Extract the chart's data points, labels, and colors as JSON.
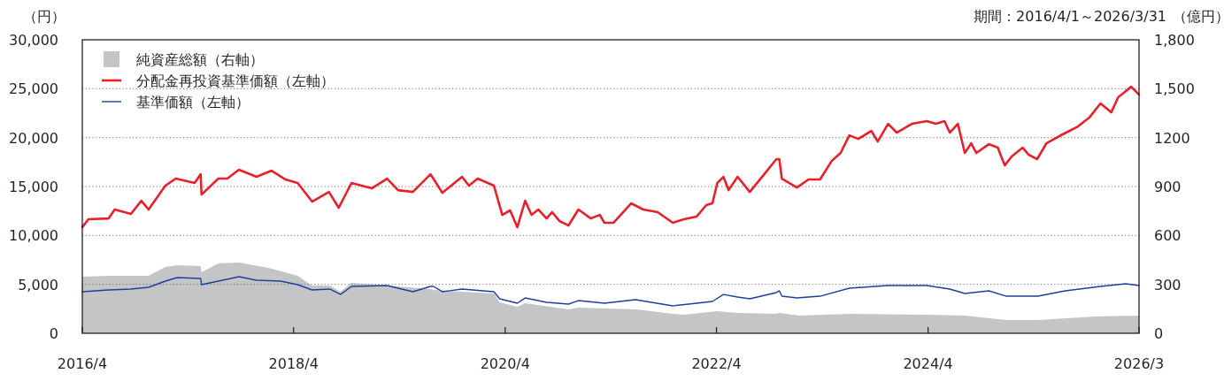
{
  "chart_data": {
    "type": "line",
    "subtitle": "期間：2016/4/1～2026/3/31",
    "ylabel": "（円）",
    "y2label": "（億円）",
    "xlim": [
      "2016-04-01",
      "2026-03-31"
    ],
    "xticks": [
      {
        "value": "2016-04-01",
        "label": "2016/4"
      },
      {
        "value": "2018-04-01",
        "label": "2018/4"
      },
      {
        "value": "2020-04-01",
        "label": "2020/4"
      },
      {
        "value": "2022-04-01",
        "label": "2022/4"
      },
      {
        "value": "2024-04-01",
        "label": "2024/4"
      },
      {
        "value": "2026-03-31",
        "label": "2026/3"
      }
    ],
    "ylim": [
      0,
      30000
    ],
    "yticks": [
      0,
      {
        "value": 5000,
        "label": "5,000"
      },
      {
        "value": 10000,
        "label": "10,000"
      },
      {
        "value": 15000,
        "label": "15,000"
      },
      {
        "value": 20000,
        "label": "20,000"
      },
      {
        "value": 25000,
        "label": "25,000"
      },
      {
        "value": 30000,
        "label": "30,000"
      }
    ],
    "y2lim": [
      0,
      1800
    ],
    "y2ticks": [
      0,
      300,
      600,
      900,
      1200,
      {
        "value": 1500,
        "label": "1,500"
      },
      {
        "value": 1800,
        "label": "1,800"
      }
    ],
    "grid": "y",
    "legend": "top left",
    "series": [
      {
        "name": "純資産総額（右軸）",
        "type": "area",
        "axis": "y2",
        "color": "#c4c5c7",
        "x": [
          "2016-04-01",
          "2016-07-01",
          "2016-11-16",
          "2017-01-13",
          "2017-02-23",
          "2017-05-15",
          "2017-05-18",
          "2017-07-15",
          "2017-09-24",
          "2018-01-04",
          "2018-04-15",
          "2018-06-04",
          "2018-08-04",
          "2018-09-10",
          "2018-10-18",
          "2019-02-18",
          "2019-07-18",
          "2019-07-28",
          "2019-11-04",
          "2020-02-22",
          "2020-03-13",
          "2020-05-13",
          "2020-06-09",
          "2020-11-06",
          "2020-12-10",
          "2021-07-01",
          "2021-11-01",
          "2021-12-10",
          "2022-04-04",
          "2022-06-13",
          "2022-10-25",
          "2022-11-04",
          "2023-01-13",
          "2023-07-04",
          "2024-03-28",
          "2024-08-06",
          "2024-12-28",
          "2025-04-16",
          "2025-11-01",
          "2026-03-31"
        ],
        "values": [
          347,
          353,
          353,
          407,
          418,
          412,
          374,
          428,
          434,
          401,
          353,
          293,
          293,
          255,
          309,
          293,
          271,
          266,
          255,
          244,
          190,
          163,
          184,
          146,
          157,
          146,
          119,
          114,
          136,
          125,
          119,
          125,
          108,
          119,
          114,
          108,
          81,
          81,
          103,
          108
        ]
      },
      {
        "name": "分配金再投資基準価額（左軸）",
        "axis": "y",
        "color": "#e8202a",
        "x": [
          "2016-04-01",
          "2016-04-22",
          "2016-07-01",
          "2016-07-22",
          "2016-09-16",
          "2016-10-22",
          "2016-11-16",
          "2017-01-13",
          "2017-02-18",
          "2017-04-24",
          "2017-05-15",
          "2017-05-18",
          "2017-07-15",
          "2017-08-15",
          "2017-09-24",
          "2017-11-24",
          "2018-01-15",
          "2018-03-04",
          "2018-04-15",
          "2018-06-04",
          "2018-08-01",
          "2018-09-04",
          "2018-10-18",
          "2018-12-27",
          "2019-02-18",
          "2019-03-28",
          "2019-05-18",
          "2019-07-18",
          "2019-08-28",
          "2019-11-04",
          "2019-11-28",
          "2019-12-28",
          "2020-02-22",
          "2020-03-22",
          "2020-04-18",
          "2020-05-13",
          "2020-06-09",
          "2020-07-01",
          "2020-07-25",
          "2020-08-22",
          "2020-09-10",
          "2020-10-06",
          "2020-11-06",
          "2020-12-10",
          "2021-01-22",
          "2021-02-22",
          "2021-03-10",
          "2021-04-10",
          "2021-06-10",
          "2021-07-22",
          "2021-09-10",
          "2021-11-01",
          "2021-12-10",
          "2022-01-22",
          "2022-02-25",
          "2022-03-18",
          "2022-04-04",
          "2022-04-25",
          "2022-05-13",
          "2022-06-13",
          "2022-07-25",
          "2022-09-13",
          "2022-10-25",
          "2022-11-04",
          "2022-11-13",
          "2023-01-04",
          "2023-02-13",
          "2023-03-25",
          "2023-05-04",
          "2023-06-04",
          "2023-07-04",
          "2023-08-04",
          "2023-09-18",
          "2023-10-10",
          "2023-11-15",
          "2023-12-15",
          "2024-02-05",
          "2024-03-28",
          "2024-04-28",
          "2024-05-28",
          "2024-06-15",
          "2024-07-13",
          "2024-08-06",
          "2024-08-28",
          "2024-09-15",
          "2024-10-28",
          "2024-11-28",
          "2024-12-22",
          "2025-01-15",
          "2025-02-22",
          "2025-03-15",
          "2025-04-13",
          "2025-05-15",
          "2025-07-10",
          "2025-09-01",
          "2025-10-10",
          "2025-11-18",
          "2025-12-25",
          "2026-01-18",
          "2026-03-04",
          "2026-03-31"
        ],
        "values": [
          10840,
          11650,
          11740,
          12650,
          12200,
          13550,
          12650,
          15090,
          15810,
          15360,
          16260,
          14180,
          15810,
          15810,
          16710,
          15990,
          16620,
          15720,
          15360,
          13460,
          14450,
          12830,
          15360,
          14810,
          15810,
          14630,
          14450,
          16260,
          14360,
          15990,
          15090,
          15810,
          15090,
          12100,
          12560,
          10840,
          13550,
          12100,
          12650,
          11740,
          12380,
          11470,
          11020,
          12650,
          11740,
          12100,
          11290,
          11290,
          13280,
          12650,
          12380,
          11290,
          11650,
          11920,
          13100,
          13280,
          15360,
          15990,
          14630,
          15990,
          14450,
          16260,
          17800,
          17800,
          15810,
          14900,
          15720,
          15720,
          17610,
          18430,
          20230,
          19870,
          20690,
          19600,
          21410,
          20510,
          21410,
          21680,
          21410,
          21680,
          20510,
          21410,
          18430,
          19420,
          18430,
          19330,
          18970,
          17160,
          18070,
          18970,
          18250,
          17800,
          19420,
          20330,
          21140,
          22040,
          23490,
          22580,
          24120,
          25200,
          24390
        ]
      },
      {
        "name": "基準価額（左軸）",
        "axis": "y",
        "color": "#1f3f99",
        "x": [
          "2016-04-01",
          "2016-07-01",
          "2016-09-16",
          "2016-11-16",
          "2017-01-13",
          "2017-02-23",
          "2017-05-15",
          "2017-05-18",
          "2017-07-15",
          "2017-09-24",
          "2017-11-24",
          "2018-02-15",
          "2018-04-15",
          "2018-06-04",
          "2018-08-04",
          "2018-09-10",
          "2018-10-18",
          "2019-02-18",
          "2019-05-18",
          "2019-07-18",
          "2019-07-28",
          "2019-08-28",
          "2019-11-04",
          "2020-02-22",
          "2020-03-13",
          "2020-05-13",
          "2020-06-09",
          "2020-08-22",
          "2020-11-06",
          "2020-12-10",
          "2021-03-10",
          "2021-06-25",
          "2021-11-01",
          "2022-01-22",
          "2022-03-18",
          "2022-04-25",
          "2022-06-13",
          "2022-07-25",
          "2022-10-25",
          "2022-11-04",
          "2022-11-13",
          "2023-01-04",
          "2023-03-25",
          "2023-07-04",
          "2023-11-15",
          "2024-03-28",
          "2024-06-15",
          "2024-08-06",
          "2024-10-28",
          "2024-12-28",
          "2025-04-16",
          "2025-07-19",
          "2025-11-18",
          "2026-02-13",
          "2026-03-31"
        ],
        "values": [
          4250,
          4430,
          4520,
          4700,
          5330,
          5690,
          5600,
          4970,
          5330,
          5780,
          5420,
          5330,
          4970,
          4430,
          4520,
          3970,
          4790,
          4880,
          4250,
          4790,
          4790,
          4250,
          4520,
          4250,
          3520,
          3070,
          3610,
          3160,
          2980,
          3340,
          3070,
          3430,
          2800,
          3070,
          3250,
          3970,
          3700,
          3520,
          4160,
          4340,
          3790,
          3610,
          3790,
          4610,
          4880,
          4880,
          4520,
          4070,
          4340,
          3790,
          3790,
          4340,
          4790,
          5060,
          4880
        ]
      }
    ]
  }
}
